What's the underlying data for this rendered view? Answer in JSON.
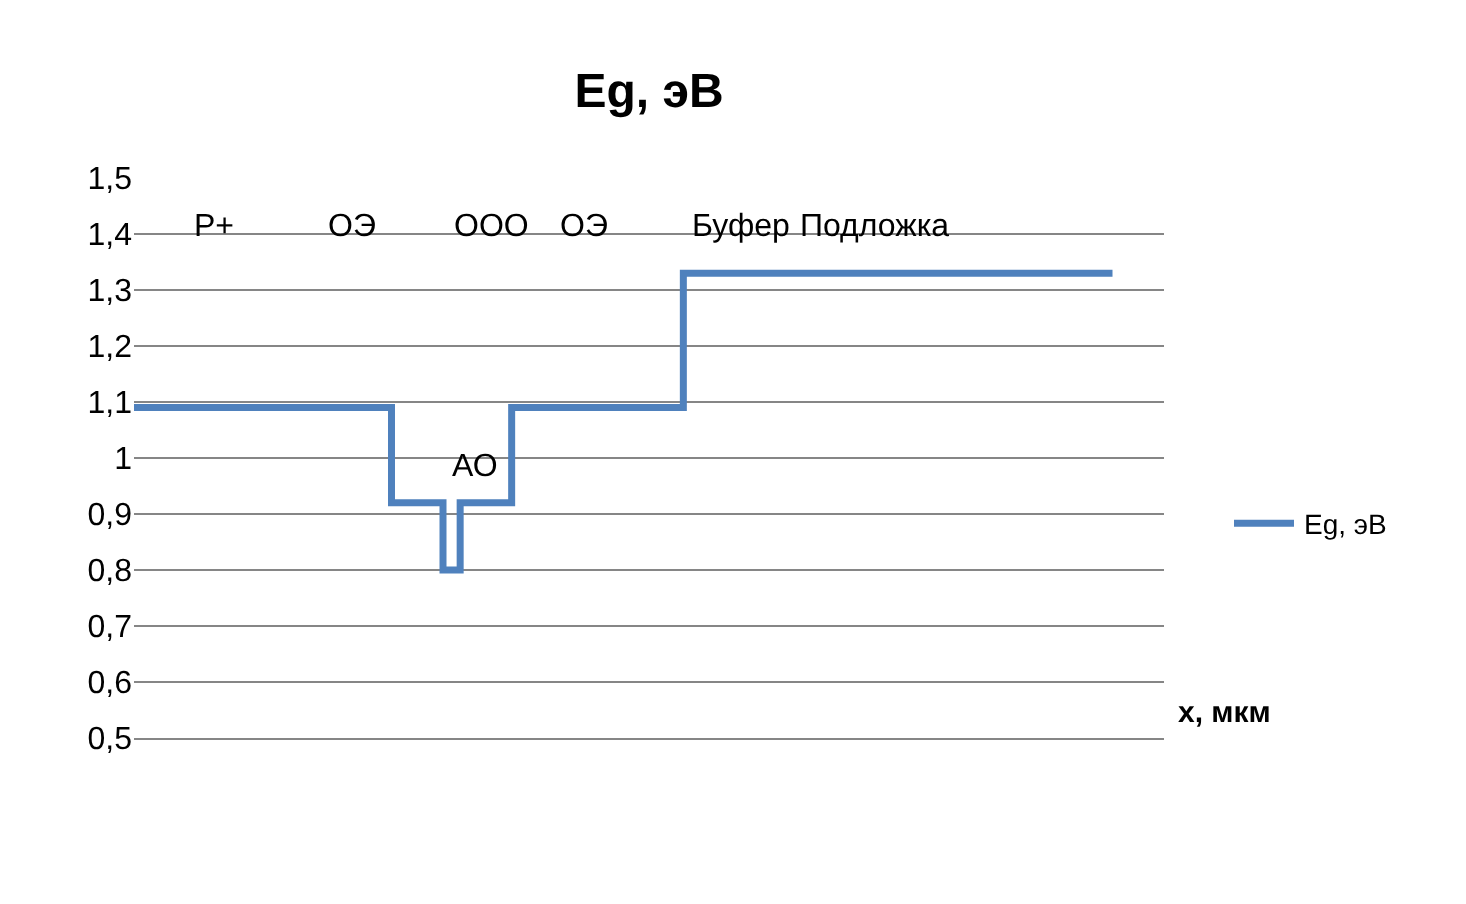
{
  "chart_data": {
    "type": "step",
    "title": "Eg, эВ",
    "xlabel": "x, мкм",
    "categories": [
      null,
      null,
      null,
      null,
      null,
      null,
      null,
      null,
      null,
      null,
      null,
      null,
      null,
      null,
      null,
      null,
      null,
      null,
      null,
      null,
      null,
      null,
      null,
      null,
      null,
      null,
      null,
      null,
      null,
      null,
      null,
      null,
      null,
      null,
      null,
      null,
      null,
      null,
      null,
      null,
      null,
      null,
      null,
      null,
      null,
      null,
      null,
      null,
      null,
      null,
      null,
      null,
      null,
      null,
      null,
      null,
      null,
      null
    ],
    "series": [
      {
        "name": "Eg, эВ",
        "color": "#4f81bd",
        "values": [
          1.09,
          1.09,
          1.09,
          1.09,
          1.09,
          1.09,
          1.09,
          1.09,
          1.09,
          1.09,
          1.09,
          1.09,
          1.09,
          1.09,
          1.09,
          0.92,
          0.92,
          0.92,
          0.8,
          0.92,
          0.92,
          0.92,
          1.09,
          1.09,
          1.09,
          1.09,
          1.09,
          1.09,
          1.09,
          1.09,
          1.09,
          1.09,
          1.33,
          1.33,
          1.33,
          1.33,
          1.33,
          1.33,
          1.33,
          1.33,
          1.33,
          1.33,
          1.33,
          1.33,
          1.33,
          1.33,
          1.33,
          1.33,
          1.33,
          1.33,
          1.33,
          1.33,
          1.33,
          1.33,
          1.33,
          1.33,
          1.33,
          1.33
        ]
      }
    ],
    "annotations": [
      "P+",
      "ОЭ",
      "ООО",
      "ОЭ",
      "Буфер",
      "Подложка",
      "АО"
    ],
    "ylim": [
      0.5,
      1.5
    ],
    "yticks": [
      {
        "value": 0.5,
        "label": "0,5"
      },
      {
        "value": 0.6,
        "label": "0,6"
      },
      {
        "value": 0.7,
        "label": "0,7"
      },
      {
        "value": 0.8,
        "label": "0,8"
      },
      {
        "value": 0.9,
        "label": "0,9"
      },
      {
        "value": 1,
        "label": "1"
      },
      {
        "value": 1.1,
        "label": "1,1"
      },
      {
        "value": 1.2,
        "label": "1,2"
      },
      {
        "value": 1.3,
        "label": "1,3"
      },
      {
        "value": 1.4,
        "label": "1,4"
      },
      {
        "value": 1.5,
        "label": "1,5"
      }
    ],
    "grid": "y",
    "legend": "right",
    "marker": "none",
    "line_style": "solid"
  }
}
